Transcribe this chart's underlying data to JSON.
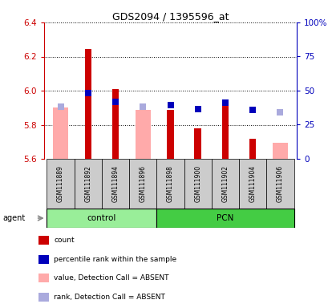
{
  "title": "GDS2094 / 1395596_at",
  "samples": [
    "GSM111889",
    "GSM111892",
    "GSM111894",
    "GSM111896",
    "GSM111898",
    "GSM111900",
    "GSM111902",
    "GSM111904",
    "GSM111906"
  ],
  "ylim_left": [
    5.6,
    6.4
  ],
  "ylim_right": [
    0,
    100
  ],
  "yticks_left": [
    5.6,
    5.8,
    6.0,
    6.2,
    6.4
  ],
  "yticks_right": [
    0,
    25,
    50,
    75,
    100
  ],
  "ytick_labels_right": [
    "0",
    "25",
    "50",
    "75",
    "100%"
  ],
  "red_bars": [
    null,
    6.245,
    6.01,
    null,
    5.885,
    5.78,
    5.925,
    5.72,
    null
  ],
  "blue_dots_val": [
    null,
    5.985,
    5.935,
    null,
    5.915,
    5.89,
    5.93,
    5.885,
    null
  ],
  "pink_bars": [
    5.9,
    null,
    null,
    5.885,
    null,
    null,
    null,
    null,
    5.695
  ],
  "light_blue_dots_val": [
    5.905,
    null,
    null,
    5.905,
    null,
    null,
    null,
    null,
    5.875
  ],
  "bar_base": 5.6,
  "red_color": "#cc0000",
  "blue_color": "#0000bb",
  "pink_color": "#ffaaaa",
  "light_blue_color": "#aaaadd",
  "bg_color": "#cccccc",
  "control_color": "#99ee99",
  "pcn_color": "#44cc44",
  "legend_items": [
    {
      "label": "count",
      "color": "#cc0000"
    },
    {
      "label": "percentile rank within the sample",
      "color": "#0000bb"
    },
    {
      "label": "value, Detection Call = ABSENT",
      "color": "#ffaaaa"
    },
    {
      "label": "rank, Detection Call = ABSENT",
      "color": "#aaaadd"
    }
  ]
}
